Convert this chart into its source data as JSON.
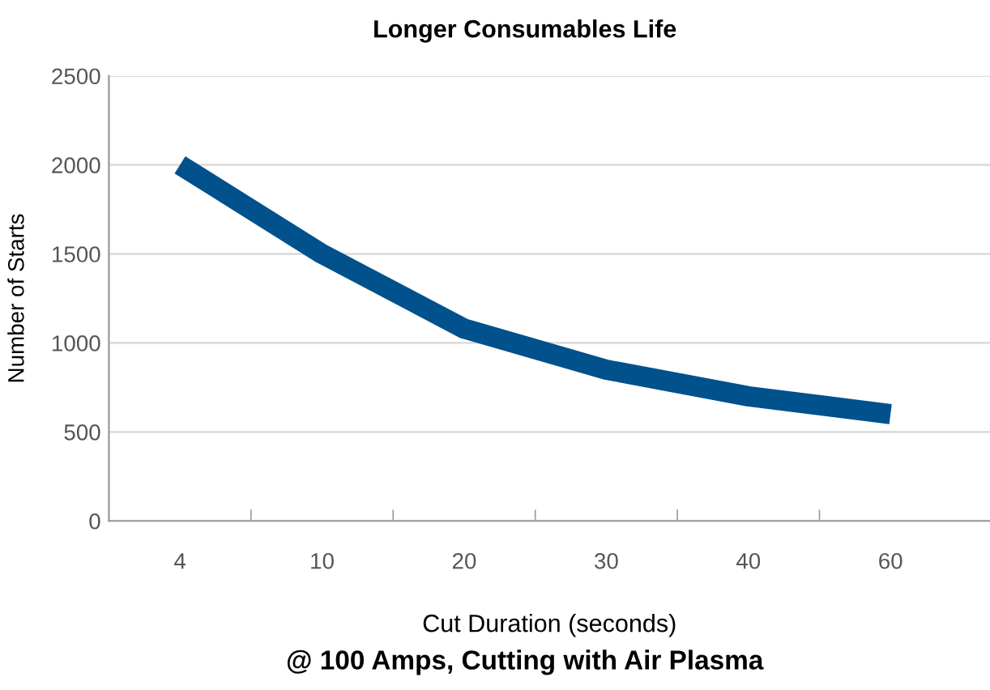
{
  "chart_data": {
    "type": "line",
    "title": "Longer Consumables Life",
    "xlabel": "Cut Duration (seconds)",
    "ylabel": "Number of Starts",
    "categories": [
      "4",
      "10",
      "20",
      "30",
      "40",
      "60"
    ],
    "series": [
      {
        "color": "#00518c",
        "values": [
          2000,
          1500,
          1080,
          850,
          700,
          600
        ]
      }
    ],
    "ylim": [
      0,
      2500
    ],
    "yticks": [
      0,
      500,
      1000,
      1500,
      2000,
      2500
    ],
    "grid": "y",
    "marker": "none",
    "line_style": "solid",
    "legend": false,
    "annotations": [
      "@ 100 Amps, Cutting with Air Plasma"
    ]
  }
}
